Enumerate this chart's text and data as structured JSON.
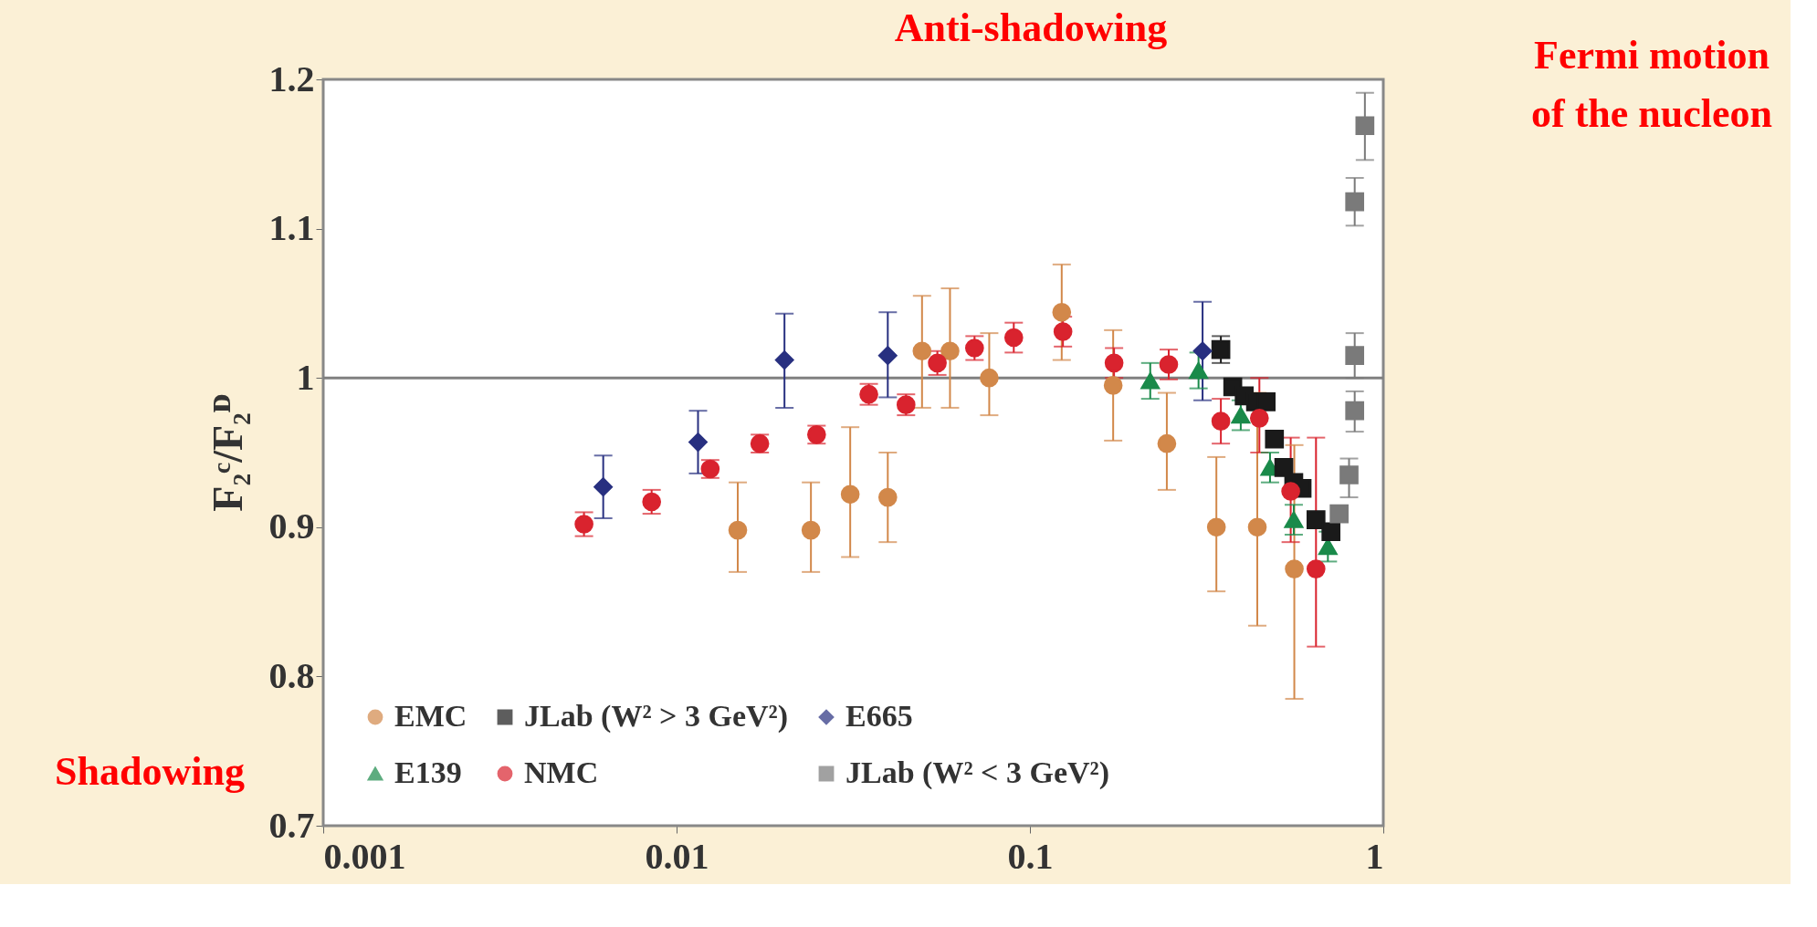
{
  "chart_data": {
    "type": "scatter",
    "ylabel": "F₂ᶜ/F₂ᴰ",
    "log": "x",
    "xlim": [
      0.001,
      1
    ],
    "xticks": [
      0.001,
      0.01,
      0.1,
      1
    ],
    "ylim": [
      0.7,
      1.2
    ],
    "yticks": [
      0.7,
      0.8,
      0.9,
      1,
      1.1,
      1.2
    ],
    "legend": "bottom left",
    "ref_lines": [
      {
        "axis": "y",
        "value": 1,
        "color": "#808080"
      }
    ],
    "annotations": [
      "Shadowing",
      "Anti-shadowing",
      "Fermi motion of the nucleon"
    ],
    "series": [
      {
        "name": "EMC",
        "color": "#d2884a",
        "marker": "circle",
        "x": [
          0.0149,
          0.024,
          0.031,
          0.0396,
          0.0495,
          0.0594,
          0.0767,
          0.123,
          0.172,
          0.244,
          0.337,
          0.44,
          0.56
        ],
        "values": [
          0.898,
          0.898,
          0.922,
          0.92,
          1.018,
          1.018,
          1.0,
          1.044,
          0.995,
          0.956,
          0.9,
          0.9,
          0.872
        ],
        "errors": [
          [
            0.87,
            0.93
          ],
          [
            0.87,
            0.93
          ],
          [
            0.88,
            0.967
          ],
          [
            0.89,
            0.95
          ],
          [
            0.98,
            1.055
          ],
          [
            0.98,
            1.06
          ],
          [
            0.975,
            1.03
          ],
          [
            1.012,
            1.076
          ],
          [
            0.958,
            1.032
          ],
          [
            0.925,
            0.99
          ],
          [
            0.857,
            0.947
          ],
          [
            0.834,
            0.99
          ],
          [
            0.785,
            0.955
          ]
        ]
      },
      {
        "name": "E139",
        "color": "#1a8a4a",
        "marker": "triangle",
        "x": [
          0.219,
          0.3,
          0.395,
          0.478,
          0.558,
          0.697
        ],
        "values": [
          0.998,
          1.005,
          0.975,
          0.94,
          0.905,
          0.887
        ],
        "errors": [
          0.012,
          0.012,
          0.01,
          0.01,
          0.01,
          0.01
        ]
      },
      {
        "name": "JLab (W² > 3 GeV²)",
        "color": "#1a1a1a",
        "marker": "square",
        "x": [
          0.347,
          0.375,
          0.404,
          0.435,
          0.466,
          0.492,
          0.523,
          0.558,
          0.589,
          0.645,
          0.711
        ],
        "values": [
          1.019,
          0.994,
          0.988,
          0.984,
          0.984,
          0.959,
          0.94,
          0.93,
          0.926,
          0.905,
          0.897
        ],
        "errors": [
          0.009,
          null,
          null,
          null,
          null,
          null,
          null,
          null,
          null,
          null,
          null
        ]
      },
      {
        "name": "NMC",
        "color": "#d9232e",
        "marker": "circle",
        "x": [
          0.00547,
          0.0085,
          0.01245,
          0.0172,
          0.0249,
          0.035,
          0.0446,
          0.0547,
          0.0697,
          0.09,
          0.124,
          0.173,
          0.247,
          0.347,
          0.446,
          0.547,
          0.645
        ],
        "values": [
          0.902,
          0.917,
          0.939,
          0.956,
          0.962,
          0.989,
          0.982,
          1.01,
          1.02,
          1.027,
          1.031,
          1.01,
          1.009,
          0.971,
          0.973,
          0.924,
          0.872
        ],
        "errors": [
          0.008,
          0.008,
          0.006,
          0.006,
          0.006,
          0.007,
          0.007,
          0.008,
          0.008,
          0.01,
          0.01,
          0.01,
          0.01,
          0.015,
          [
            0.95,
            1.0
          ],
          [
            0.89,
            0.96
          ],
          [
            0.82,
            0.96
          ]
        ]
      },
      {
        "name": "E665",
        "color": "#283080",
        "marker": "diamond",
        "x": [
          0.0062,
          0.0115,
          0.0202,
          0.0396,
          0.308
        ],
        "values": [
          0.927,
          0.957,
          1.012,
          1.015,
          1.018
        ],
        "errors": [
          [
            0.906,
            0.948
          ],
          [
            0.936,
            0.978
          ],
          [
            0.98,
            1.043
          ],
          [
            0.987,
            1.044
          ],
          [
            0.985,
            1.051
          ]
        ]
      },
      {
        "name": "JLab (W² < 3 GeV²)",
        "color": "#7a7a7a",
        "marker": "square",
        "x": [
          0.887,
          0.83,
          0.83,
          0.83,
          0.8,
          0.75
        ],
        "values": [
          1.169,
          1.118,
          1.015,
          0.978,
          0.935,
          0.909
        ],
        "errors": [
          [
            1.146,
            1.191
          ],
          [
            1.102,
            1.134
          ],
          [
            1.0,
            1.03
          ],
          [
            0.964,
            0.991
          ],
          [
            0.92,
            0.946
          ],
          null
        ]
      }
    ]
  }
}
